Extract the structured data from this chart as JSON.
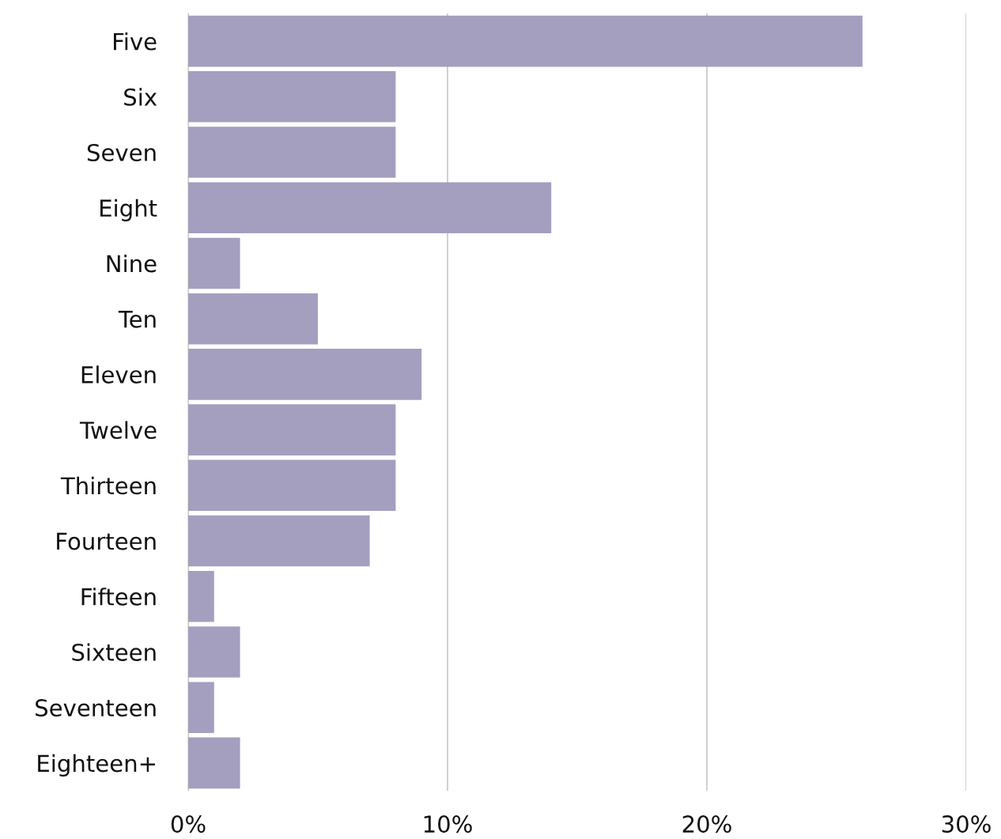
{
  "chart_data": {
    "type": "bar",
    "orientation": "horizontal",
    "categories": [
      "Five",
      "Six",
      "Seven",
      "Eight",
      "Nine",
      "Ten",
      "Eleven",
      "Twelve",
      "Thirteen",
      "Fourteen",
      "Fifteen",
      "Sixteen",
      "Seventeen",
      "Eighteen+"
    ],
    "values": [
      26,
      8,
      8,
      14,
      2,
      5,
      9,
      8,
      8,
      7,
      1,
      2,
      1,
      2
    ],
    "color": "#a49fbf",
    "xlim": [
      0,
      30
    ],
    "xticks": [
      {
        "value": 0,
        "label": "0%"
      },
      {
        "value": 10,
        "label": "10%"
      },
      {
        "value": 20,
        "label": "20%"
      },
      {
        "value": 30,
        "label": "30%"
      }
    ],
    "grid": "x",
    "legend": false
  }
}
